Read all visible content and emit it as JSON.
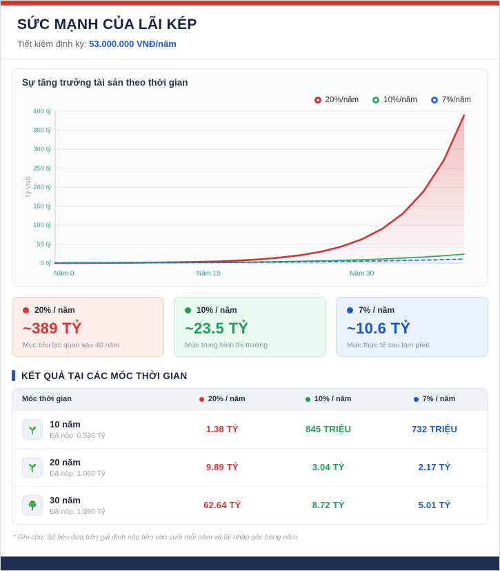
{
  "page": {
    "title": "SỨC MẠNH CỦA LÃI KÉP",
    "subtitle_label": "Tiết kiệm định kỳ:",
    "subtitle_value": "53.000.000 VNĐ/năm",
    "note": "* Ghi chú: Số liệu dựa trên giả định nộp tiền vào cuối mỗi năm và lãi nhập gốc hàng năm.",
    "colors": {
      "accent_red": "#e03131",
      "green": "#18a058",
      "blue": "#1a56db",
      "navy": "#17233f",
      "footer": "#222e4e"
    }
  },
  "chart": {
    "title": "Sự tăng trưởng tài sản theo thời gian",
    "legend": [
      {
        "label": "20%/năm",
        "color": "#d63031"
      },
      {
        "label": "10%/năm",
        "color": "#27ae60"
      },
      {
        "label": "7%/năm",
        "color": "#2d6cdf"
      }
    ]
  },
  "chart_data": {
    "type": "line",
    "title": "Sự tăng trưởng tài sản theo thời gian",
    "xlabel": "Năm",
    "ylabel": "Tỷ VND",
    "ylim": [
      0,
      400
    ],
    "ytick_step": 50,
    "ytick_suffix": " tỷ",
    "grid": true,
    "legend_position": "top-right",
    "x": [
      0,
      2,
      4,
      6,
      8,
      10,
      12,
      14,
      16,
      18,
      20,
      22,
      24,
      26,
      28,
      30,
      32,
      34,
      36,
      38,
      40
    ],
    "xlabel_ticks": [
      {
        "x": 0,
        "label": "Năm 0"
      },
      {
        "x": 15,
        "label": "Năm 15"
      },
      {
        "x": 30,
        "label": "Năm 30"
      }
    ],
    "series": [
      {
        "name": "20%/năm",
        "color": "#d63031",
        "area": true,
        "dashed": false,
        "values": [
          0,
          0.117,
          0.285,
          0.526,
          0.874,
          1.376,
          2.098,
          3.137,
          4.634,
          6.79,
          9.894,
          14.365,
          20.802,
          30.071,
          43.419,
          62.64,
          90.32,
          130.17,
          187.57,
          270.21,
          389.22
        ]
      },
      {
        "name": "10%/năm",
        "color": "#27ae60",
        "area": false,
        "dashed": false,
        "values": [
          0,
          0.111,
          0.246,
          0.409,
          0.606,
          0.845,
          1.133,
          1.483,
          1.905,
          2.417,
          3.036,
          3.784,
          4.69,
          5.787,
          7.113,
          8.718,
          10.66,
          13.01,
          15.854,
          19.294,
          23.457
        ]
      },
      {
        "name": "7%/năm",
        "color": "#2d6cdf",
        "area": false,
        "dashed": true,
        "values": [
          0,
          0.11,
          0.235,
          0.379,
          0.544,
          0.732,
          0.948,
          1.195,
          1.478,
          1.802,
          2.173,
          2.597,
          3.083,
          3.64,
          4.277,
          5.006,
          5.842,
          6.798,
          7.892,
          9.146,
          10.581
        ]
      }
    ]
  },
  "summary_cards": [
    {
      "rate": "20% / năm",
      "value": "~389 TỶ",
      "desc": "Mục tiêu lạc quan sau 40 năm"
    },
    {
      "rate": "10% / năm",
      "value": "~23.5 TỶ",
      "desc": "Mức trung bình thị trường"
    },
    {
      "rate": "7% / năm",
      "value": "~10.6 TỶ",
      "desc": "Mức thực tế sau lạm phát"
    }
  ],
  "milestones": {
    "heading": "KẾT QUẢ TẠI CÁC MỐC THỜI GIAN",
    "columns": [
      "Mốc thời gian",
      "20% / năm",
      "10% / năm",
      "7% / năm"
    ],
    "rows": [
      {
        "icon": "seedling-icon",
        "period": "10 năm",
        "deposited": "Đã nộp: 0.530 Tỷ",
        "v20": "1.38 TỶ",
        "v10": "845 TRIỆU",
        "v7": "732 TRIỆU"
      },
      {
        "icon": "plant-icon",
        "period": "20 năm",
        "deposited": "Đã nộp: 1.060 Tỷ",
        "v20": "9.89 TỶ",
        "v10": "3.04 TỶ",
        "v7": "2.17 TỶ"
      },
      {
        "icon": "tree-icon",
        "period": "30 năm",
        "deposited": "Đã nộp: 1.590 Tỷ",
        "v20": "62.64 TỶ",
        "v10": "8.72 TỶ",
        "v7": "5.01 TỶ"
      }
    ]
  }
}
